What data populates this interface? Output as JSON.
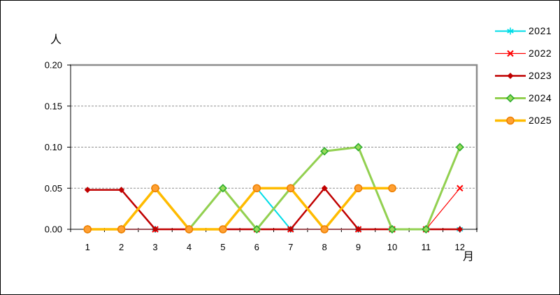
{
  "chart_data": {
    "type": "line",
    "title": "",
    "y_axis_unit": "人",
    "x_axis_label": "月",
    "categories": [
      "1",
      "2",
      "3",
      "4",
      "5",
      "6",
      "7",
      "8",
      "9",
      "10",
      "11",
      "12"
    ],
    "y_ticks": [
      "0.00",
      "0.05",
      "0.10",
      "0.15",
      "0.20"
    ],
    "ylim": [
      0,
      0.2
    ],
    "grid": "horizontal-dashed",
    "gridline_color": "#909090",
    "plot_border_shadow_color": "#8C8C8C",
    "axis_color": "#000000",
    "legend_position": "right-top",
    "series": [
      {
        "name": "2021",
        "color": "#00DDE8",
        "marker": "asterisk",
        "marker_stroke": "#00DDE8",
        "width": 2,
        "values": [
          0,
          0,
          0,
          0,
          0,
          0.05,
          0,
          0,
          0,
          0,
          0,
          0
        ]
      },
      {
        "name": "2022",
        "color": "#FF0000",
        "marker": "x",
        "marker_stroke": "#FF0000",
        "width": 1.2,
        "values": [
          0,
          0,
          0,
          0,
          0,
          0,
          0,
          0,
          0,
          0,
          0,
          0.05
        ]
      },
      {
        "name": "2023",
        "color": "#C00000",
        "marker": "diamond-filled",
        "marker_fill": "#C00000",
        "marker_stroke": "#C00000",
        "width": 2.5,
        "values": [
          0.048,
          0.048,
          0,
          0,
          0,
          0,
          0,
          0.05,
          0,
          0,
          0,
          0
        ]
      },
      {
        "name": "2024",
        "color": "#92D050",
        "marker": "diamond",
        "marker_fill": "#9ADB5A",
        "marker_stroke": "#2FAD2F",
        "width": 3,
        "values": [
          0,
          0,
          0.05,
          0,
          0.05,
          0,
          0.05,
          0.095,
          0.1,
          0,
          0,
          0.1
        ]
      },
      {
        "name": "2025",
        "color": "#FFBB00",
        "marker": "circle",
        "marker_fill": "#FFA033",
        "marker_stroke": "#EE8000",
        "width": 3.5,
        "values": [
          0,
          0,
          0.05,
          0,
          0,
          0.05,
          0.05,
          0,
          0.05,
          0.05,
          null,
          null
        ]
      }
    ]
  }
}
